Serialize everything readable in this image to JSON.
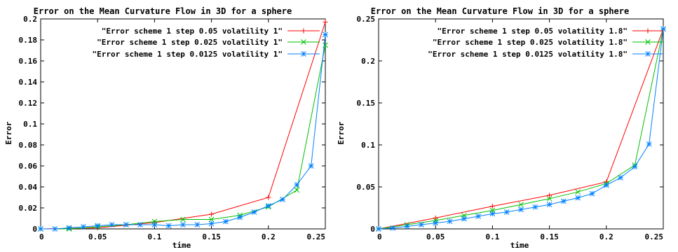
{
  "chart_data": [
    {
      "type": "line",
      "title": "Error on the Mean Curvature Flow in  3D for a sphere",
      "xlabel": "time",
      "ylabel": "Error",
      "xlim": [
        0,
        0.25
      ],
      "ylim": [
        0,
        0.2
      ],
      "x_ticks": [
        "0",
        "0.05",
        "0.1",
        "0.15",
        "0.2",
        "0.25"
      ],
      "y_ticks": [
        "0",
        "0.02",
        "0.04",
        "0.06",
        "0.08",
        "0.1",
        "0.12",
        "0.14",
        "0.16",
        "0.18",
        "0.2"
      ],
      "grid": false,
      "legend_position": "top-right",
      "series": [
        {
          "name": "\"Error scheme 1 step 0.05 volatility 1\"",
          "color": "#ff0000",
          "marker": "plus",
          "x": [
            0,
            0.05,
            0.1,
            0.15,
            0.2,
            0.25
          ],
          "y": [
            0,
            0.001,
            0.006,
            0.014,
            0.03,
            0.197
          ]
        },
        {
          "name": "\"Error scheme 1 step 0.025 volatility 1\"",
          "color": "#00c000",
          "marker": "cross",
          "x": [
            0,
            0.025,
            0.05,
            0.075,
            0.1,
            0.125,
            0.15,
            0.175,
            0.2,
            0.225,
            0.25
          ],
          "y": [
            0,
            0,
            0.002,
            0.004,
            0.007,
            0.009,
            0.009,
            0.013,
            0.021,
            0.037,
            0.175
          ]
        },
        {
          "name": "\"Error scheme 1 step 0.0125 volatility 1\"",
          "color": "#0080ff",
          "marker": "star",
          "x": [
            0,
            0.0125,
            0.025,
            0.0375,
            0.05,
            0.0625,
            0.075,
            0.0875,
            0.1,
            0.1125,
            0.125,
            0.1375,
            0.15,
            0.1625,
            0.175,
            0.1875,
            0.2,
            0.2125,
            0.225,
            0.2375,
            0.25
          ],
          "y": [
            0,
            0,
            0.001,
            0.002,
            0.003,
            0.004,
            0.004,
            0.004,
            0.004,
            0.003,
            0.004,
            0.004,
            0.005,
            0.007,
            0.011,
            0.016,
            0.022,
            0.028,
            0.042,
            0.06,
            0.185
          ]
        }
      ]
    },
    {
      "type": "line",
      "title": "Error on the Mean Curvature Flow in  3D for a sphere",
      "xlabel": "time",
      "ylabel": "Error",
      "xlim": [
        0,
        0.25
      ],
      "ylim": [
        0,
        0.25
      ],
      "x_ticks": [
        "0",
        "0.05",
        "0.1",
        "0.15",
        "0.2",
        "0.25"
      ],
      "y_ticks": [
        "0",
        "0.05",
        "0.1",
        "0.15",
        "0.2",
        "0.25"
      ],
      "grid": false,
      "legend_position": "top-right",
      "series": [
        {
          "name": "\"Error scheme 1 step 0.05 volatility 1.8\"",
          "color": "#ff0000",
          "marker": "plus",
          "x": [
            0,
            0.05,
            0.1,
            0.15,
            0.2,
            0.25
          ],
          "y": [
            0,
            0.013,
            0.027,
            0.04,
            0.056,
            0.238
          ]
        },
        {
          "name": "\"Error scheme 1 step 0.025 volatility 1.8\"",
          "color": "#00c000",
          "marker": "cross",
          "x": [
            0,
            0.025,
            0.05,
            0.075,
            0.1,
            0.125,
            0.15,
            0.175,
            0.2,
            0.225,
            0.25
          ],
          "y": [
            0,
            0.005,
            0.01,
            0.016,
            0.022,
            0.029,
            0.036,
            0.044,
            0.054,
            0.076,
            0.238
          ]
        },
        {
          "name": "\"Error scheme 1 step 0.0125 volatility 1.8\"",
          "color": "#0080ff",
          "marker": "star",
          "x": [
            0,
            0.0125,
            0.025,
            0.0375,
            0.05,
            0.0625,
            0.075,
            0.0875,
            0.1,
            0.1125,
            0.125,
            0.1375,
            0.15,
            0.1625,
            0.175,
            0.1875,
            0.2,
            0.2125,
            0.225,
            0.2375,
            0.25
          ],
          "y": [
            0,
            0.001,
            0.003,
            0.005,
            0.007,
            0.009,
            0.012,
            0.015,
            0.018,
            0.02,
            0.023,
            0.026,
            0.029,
            0.033,
            0.037,
            0.042,
            0.052,
            0.061,
            0.074,
            0.101,
            0.238
          ]
        }
      ]
    }
  ]
}
